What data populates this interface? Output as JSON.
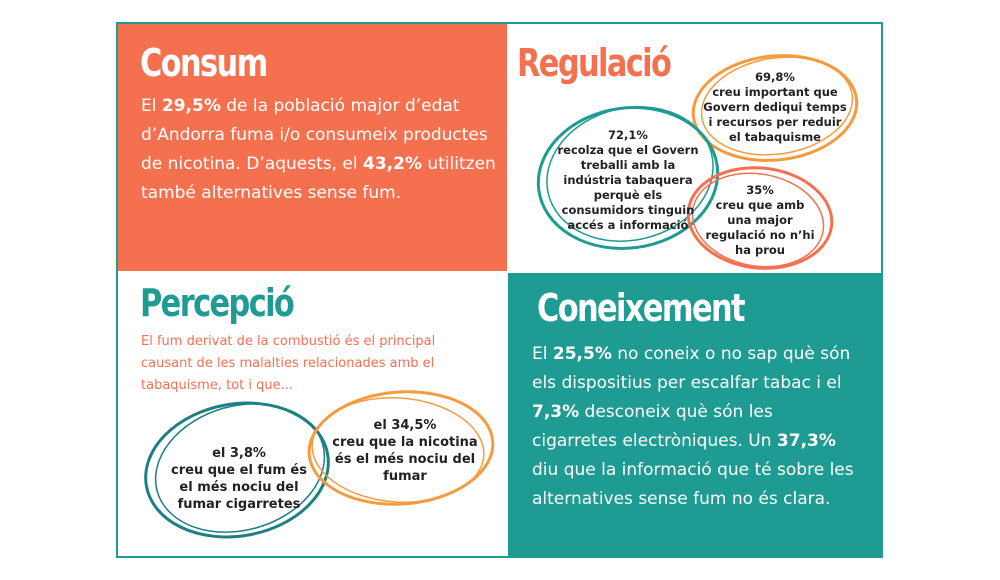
{
  "consum": {
    "title": "Consum",
    "p1_pre": "El ",
    "p1_b1": "29,5%",
    "p1_mid": " de la població major d’edat d’Andorra fuma i/o consumeix productes de nicotina. D’aquests, el ",
    "p1_b2": "43,2%",
    "p1_post": " utilitzen també alternatives sense fum."
  },
  "regulacio": {
    "title": "Regulació",
    "b1": "69,8%\ncreu important que\nGovern dediqui temps\ni recursos per reduir\nel  tabaquisme",
    "b2": "72,1%\nrecolza que el Govern\ntreballi amb la\nindústria tabaquera\nperquè els\nconsumidors tinguin\naccés a informació",
    "b3": "35%\ncreu que amb\nuna major\nregulació no n’hi\nha prou"
  },
  "percepcio": {
    "title": "Percepció",
    "intro": "El fum derivat de la combustió és el principal causant de les malalties relacionades amb el tabaquisme, tot i que...",
    "b1": "el 3,8%\ncreu que el fum és\nel més nociu del\nfumar cigarretes",
    "b2": "el 34,5%\ncreu que la nicotina\nés el més nociu del\nfumar"
  },
  "coneixement": {
    "title": "Coneixement",
    "s1": "El ",
    "b1": "25,5%",
    "s2": " no coneix o no sap què són els dispositius per escalfar tabac i el ",
    "b2": "7,3%",
    "s3": " desconeix què són les cigarretes electròniques. Un ",
    "b3": "37,3%",
    "s4": " diu que la informació que té sobre les alternatives sense fum no és clara."
  },
  "colors": {
    "coral": "#f4704f",
    "teal": "#1e9b93",
    "orange": "#f79a3e"
  }
}
